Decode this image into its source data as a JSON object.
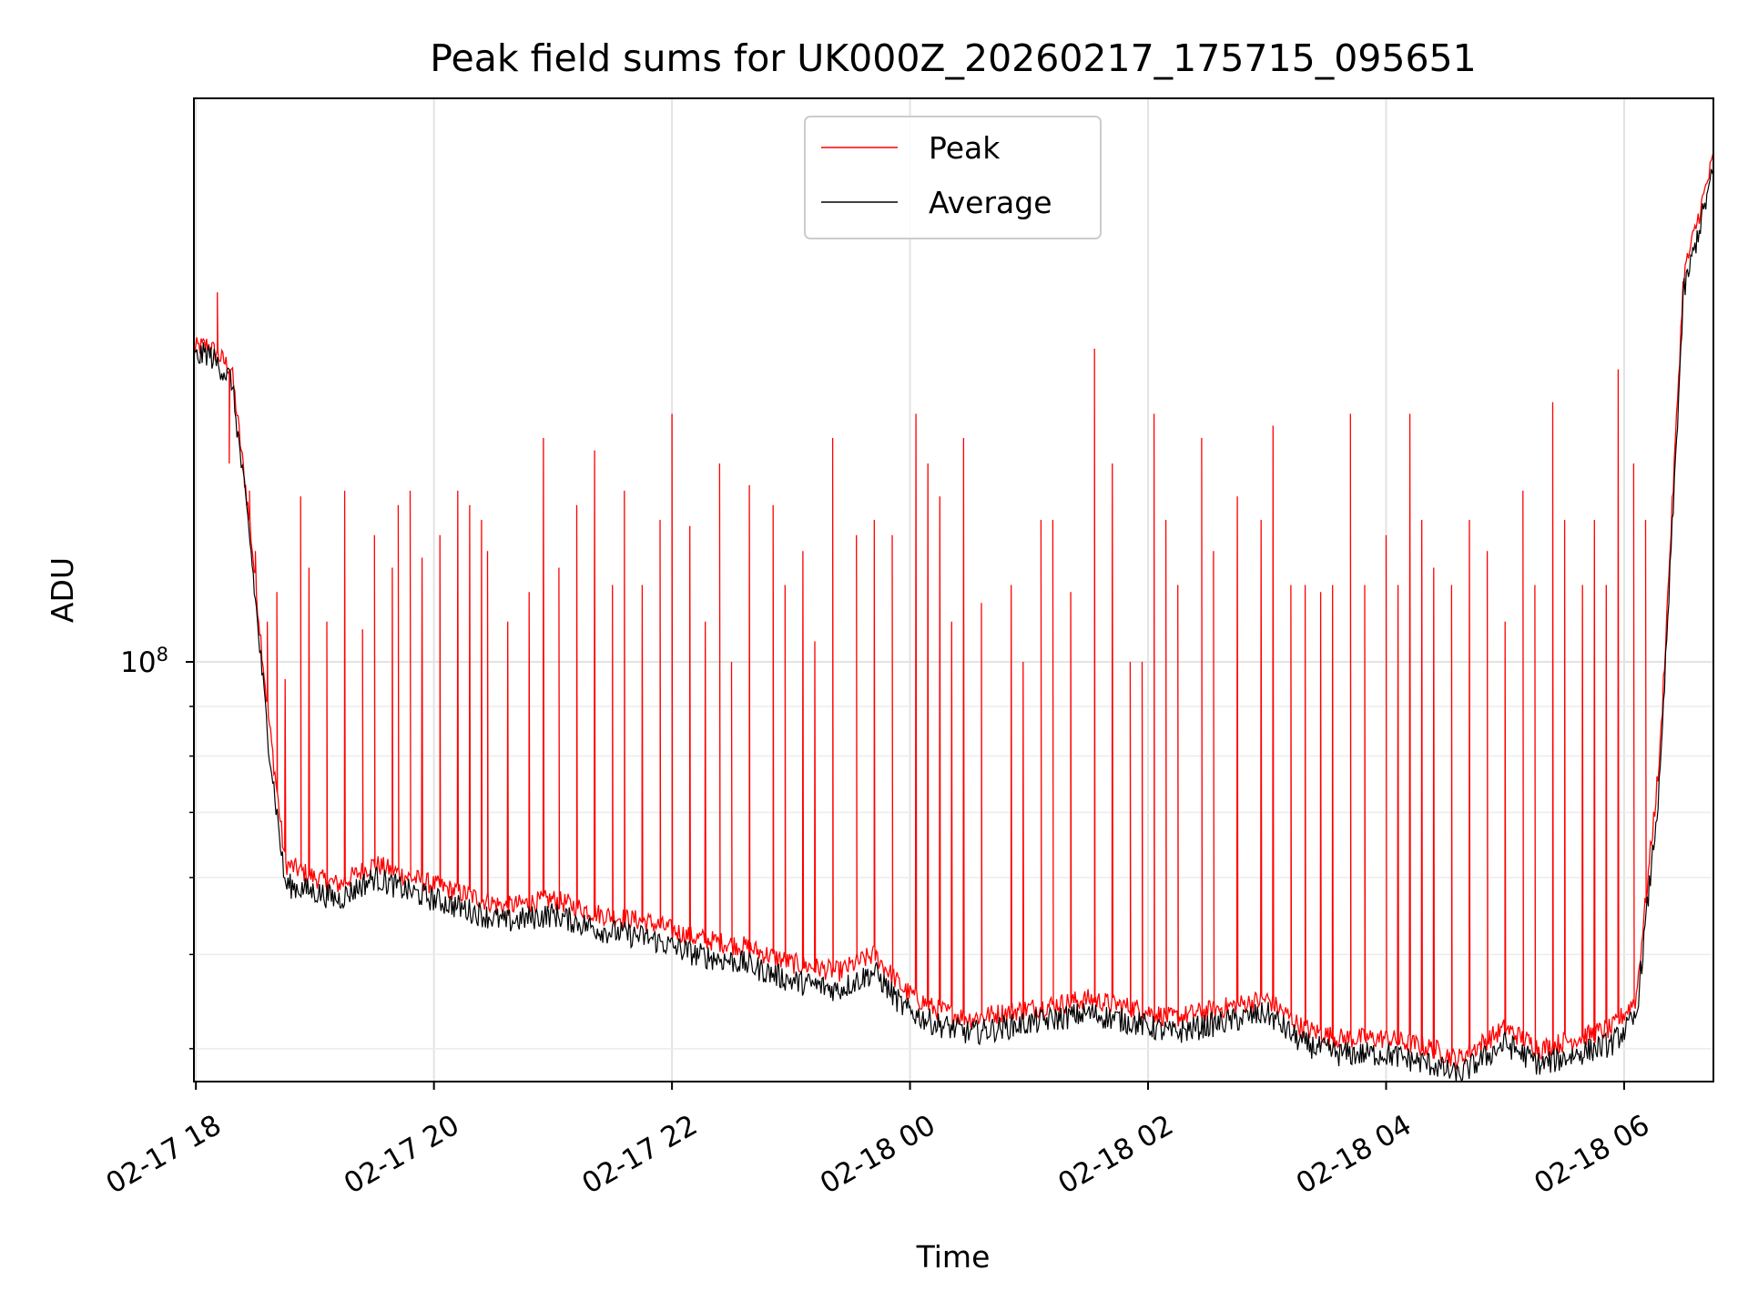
{
  "chart_data": {
    "type": "line",
    "title": "Peak field sums for UK000Z_20260217_175715_095651",
    "xlabel": "Time",
    "ylabel": "ADU",
    "yscale": "log",
    "ylim": [
      37000000,
      380000000
    ],
    "xlim_hours": [
      -0.0167,
      12.75
    ],
    "grid": true,
    "legend_position": "top-center",
    "x_ticks": [
      {
        "label": "02-17 18",
        "hour": 0
      },
      {
        "label": "02-17 20",
        "hour": 2
      },
      {
        "label": "02-17 22",
        "hour": 4
      },
      {
        "label": "02-18 00",
        "hour": 6
      },
      {
        "label": "02-18 02",
        "hour": 8
      },
      {
        "label": "02-18 04",
        "hour": 10
      },
      {
        "label": "02-18 06",
        "hour": 12
      }
    ],
    "y_major_tick": {
      "base": "10",
      "exponent": "8",
      "value": 100000000
    },
    "y_minor_ticks": [
      40000000,
      50000000,
      60000000,
      70000000,
      80000000,
      90000000
    ],
    "series": [
      {
        "name": "Peak",
        "color": "#ff0000",
        "note": "Per-frame peak sum; follows the average baseline with many sharp spikes",
        "baseline_hours": [
          -0.02,
          0.1,
          0.3,
          0.45,
          0.6,
          0.75,
          1.0,
          1.2,
          1.5,
          1.8,
          2.2,
          2.6,
          3.0,
          3.4,
          3.8,
          4.2,
          4.6,
          5.0,
          5.4,
          5.7,
          5.95,
          6.2,
          6.5,
          7.0,
          7.5,
          7.9,
          8.2,
          8.6,
          9.0,
          9.3,
          9.6,
          10.0,
          10.4,
          10.6,
          11.0,
          11.3,
          11.6,
          11.9,
          12.1,
          12.3,
          12.5,
          12.75
        ],
        "baseline_values": [
          210000000,
          212000000,
          200000000,
          140000000,
          90000000,
          62000000,
          60000000,
          59000000,
          62000000,
          60000000,
          58000000,
          56000000,
          57000000,
          55000000,
          54000000,
          52000000,
          51000000,
          49000000,
          48000000,
          50000000,
          46000000,
          44000000,
          43000000,
          44000000,
          45000000,
          44000000,
          43000000,
          44000000,
          45000000,
          42000000,
          41000000,
          41000000,
          40000000,
          39000000,
          42000000,
          40000000,
          41000000,
          42000000,
          45000000,
          80000000,
          250000000,
          330000000
        ],
        "spikes_hours": [
          0.18,
          0.28,
          0.45,
          0.5,
          0.6,
          0.68,
          0.75,
          0.88,
          0.95,
          1.1,
          1.25,
          1.4,
          1.5,
          1.65,
          1.7,
          1.8,
          1.9,
          2.05,
          2.2,
          2.3,
          2.4,
          2.45,
          2.62,
          2.8,
          2.92,
          3.05,
          3.2,
          3.35,
          3.5,
          3.6,
          3.75,
          3.9,
          4.0,
          4.15,
          4.28,
          4.4,
          4.5,
          4.65,
          4.85,
          4.95,
          5.1,
          5.2,
          5.35,
          5.55,
          5.7,
          5.85,
          6.05,
          6.15,
          6.25,
          6.35,
          6.45,
          6.6,
          6.85,
          6.95,
          7.1,
          7.2,
          7.35,
          7.55,
          7.7,
          7.85,
          7.95,
          8.05,
          8.15,
          8.25,
          8.45,
          8.55,
          8.75,
          8.95,
          9.05,
          9.2,
          9.32,
          9.45,
          9.55,
          9.7,
          9.82,
          10.0,
          10.1,
          10.2,
          10.3,
          10.4,
          10.55,
          10.7,
          10.85,
          11.0,
          11.15,
          11.25,
          11.4,
          11.5,
          11.65,
          11.75,
          11.85,
          11.95,
          12.08,
          12.18
        ],
        "spikes_values": [
          240000000,
          160000000,
          150000000,
          130000000,
          110000000,
          118000000,
          96000000,
          148000000,
          125000000,
          110000000,
          150000000,
          108000000,
          135000000,
          125000000,
          145000000,
          150000000,
          128000000,
          135000000,
          150000000,
          145000000,
          140000000,
          130000000,
          110000000,
          118000000,
          170000000,
          125000000,
          145000000,
          165000000,
          120000000,
          150000000,
          120000000,
          140000000,
          180000000,
          138000000,
          110000000,
          160000000,
          100000000,
          152000000,
          145000000,
          120000000,
          130000000,
          105000000,
          170000000,
          135000000,
          140000000,
          135000000,
          180000000,
          160000000,
          148000000,
          110000000,
          170000000,
          115000000,
          120000000,
          100000000,
          140000000,
          140000000,
          118000000,
          210000000,
          160000000,
          100000000,
          100000000,
          180000000,
          140000000,
          120000000,
          170000000,
          130000000,
          148000000,
          140000000,
          175000000,
          120000000,
          120000000,
          118000000,
          120000000,
          180000000,
          120000000,
          135000000,
          120000000,
          180000000,
          140000000,
          125000000,
          120000000,
          140000000,
          130000000,
          110000000,
          150000000,
          120000000,
          185000000,
          140000000,
          120000000,
          140000000,
          120000000,
          200000000,
          160000000,
          140000000
        ]
      },
      {
        "name": "Average",
        "color": "#000000",
        "note": "Per-frame average sum",
        "baseline_hours": [
          -0.02,
          0.1,
          0.3,
          0.45,
          0.6,
          0.75,
          1.0,
          1.2,
          1.5,
          1.8,
          2.2,
          2.6,
          3.0,
          3.4,
          3.8,
          4.2,
          4.6,
          5.0,
          5.4,
          5.7,
          5.95,
          6.2,
          6.5,
          7.0,
          7.5,
          7.9,
          8.2,
          8.6,
          9.0,
          9.3,
          9.6,
          10.0,
          10.4,
          10.6,
          11.0,
          11.3,
          11.6,
          11.9,
          12.1,
          12.3,
          12.5,
          12.75
        ],
        "baseline_values": [
          205000000,
          208000000,
          195000000,
          135000000,
          85000000,
          59000000,
          58000000,
          57000000,
          60000000,
          58000000,
          56000000,
          54000000,
          55000000,
          53000000,
          52000000,
          50000000,
          49000000,
          47000000,
          46000000,
          48000000,
          44000000,
          42500000,
          41500000,
          42500000,
          43500000,
          42500000,
          41500000,
          42500000,
          43500000,
          40500000,
          39500000,
          39500000,
          38500000,
          37500000,
          40500000,
          38500000,
          39500000,
          40500000,
          43000000,
          75000000,
          240000000,
          320000000
        ]
      }
    ]
  }
}
